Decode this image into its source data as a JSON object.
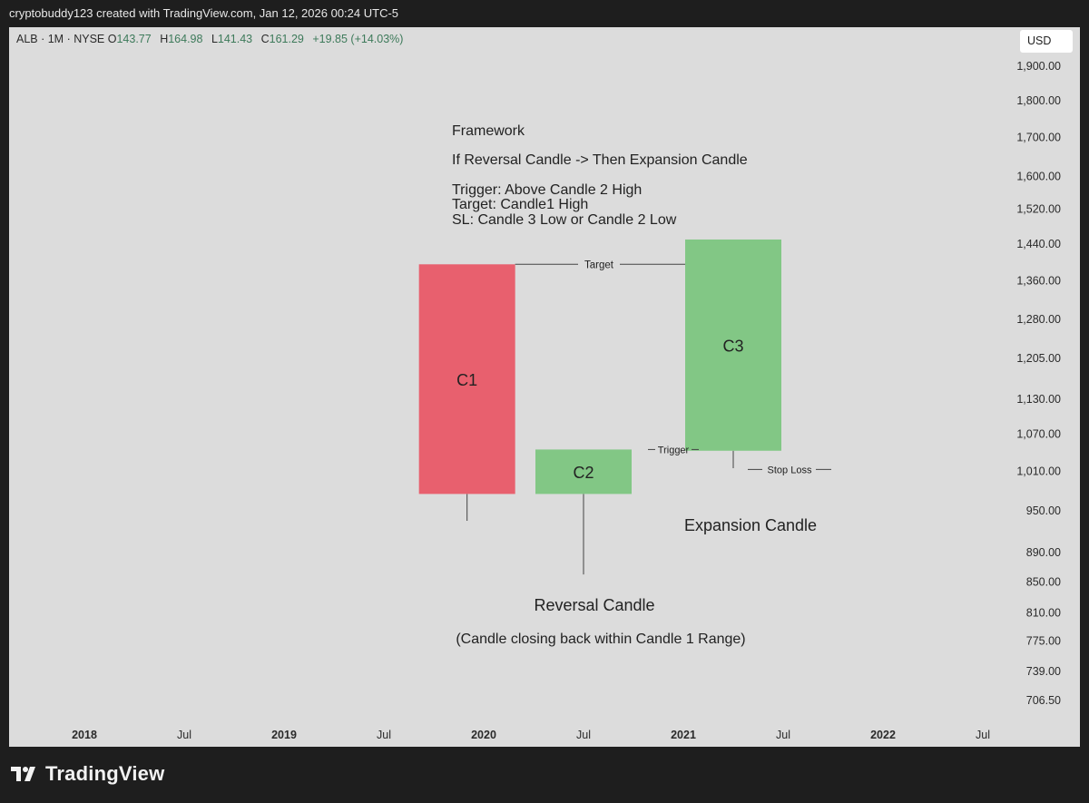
{
  "header": {
    "attribution": "cryptobuddy123 created with TradingView.com, Jan 12, 2026 00:24 UTC-5"
  },
  "symbol": {
    "name": "ALB · 1M · NYSE",
    "open_label": "O",
    "open": "143.77",
    "high_label": "H",
    "high": "164.98",
    "low_label": "L",
    "low": "141.43",
    "close_label": "C",
    "close": "161.29",
    "change": "+19.85 (+14.03%)"
  },
  "currency_button": "USD",
  "brand": {
    "name": "TradingView"
  },
  "colors": {
    "background": "#dcdcdc",
    "bearish": "#e8606e",
    "bullish": "#82c785",
    "value_green": "#3d7a5a"
  },
  "chart_data": {
    "type": "candlestick",
    "y_axis_ticks": [
      "1,900.00",
      "1,800.00",
      "1,700.00",
      "1,600.00",
      "1,520.00",
      "1,440.00",
      "1,360.00",
      "1,280.00",
      "1,205.00",
      "1,130.00",
      "1,070.00",
      "1,010.00",
      "950.00",
      "890.00",
      "850.00",
      "810.00",
      "775.00",
      "739.00",
      "706.50"
    ],
    "y_scale": "log",
    "x_axis_ticks": [
      {
        "label": "2018",
        "bold": true
      },
      {
        "label": "Jul",
        "bold": false
      },
      {
        "label": "2019",
        "bold": true
      },
      {
        "label": "Jul",
        "bold": false
      },
      {
        "label": "2020",
        "bold": true
      },
      {
        "label": "Jul",
        "bold": false
      },
      {
        "label": "2021",
        "bold": true
      },
      {
        "label": "Jul",
        "bold": false
      },
      {
        "label": "2022",
        "bold": true
      },
      {
        "label": "Jul",
        "bold": false
      }
    ],
    "candles": [
      {
        "label": "C1",
        "date": "2019-12",
        "open": 1395,
        "close": 975,
        "high": 1395,
        "low": 935,
        "direction": "down"
      },
      {
        "label": "C2",
        "date": "2020-07",
        "open": 975,
        "close": 1045,
        "high": 1045,
        "low": 860,
        "direction": "up"
      },
      {
        "label": "C3",
        "date": "2021-04",
        "open": 1043,
        "close": 1450,
        "high": 1450,
        "low": 1015,
        "direction": "up"
      }
    ],
    "levels": [
      {
        "label": "Target",
        "value": 1395
      },
      {
        "label": "Trigger",
        "value": 1045
      },
      {
        "label": "Stop Loss",
        "value": 1013
      }
    ],
    "annotations": {
      "framework_title": "Framework",
      "framework_rule": "If Reversal Candle -> Then Expansion Candle",
      "trigger_rule": "Trigger: Above Candle 2 High",
      "target_rule": "Target: Candle1 High",
      "sl_rule": "SL: Candle 3 Low or Candle 2 Low",
      "expansion_label": "Expansion Candle",
      "reversal_label": "Reversal Candle",
      "reversal_note": "(Candle closing back within Candle 1 Range)"
    }
  }
}
